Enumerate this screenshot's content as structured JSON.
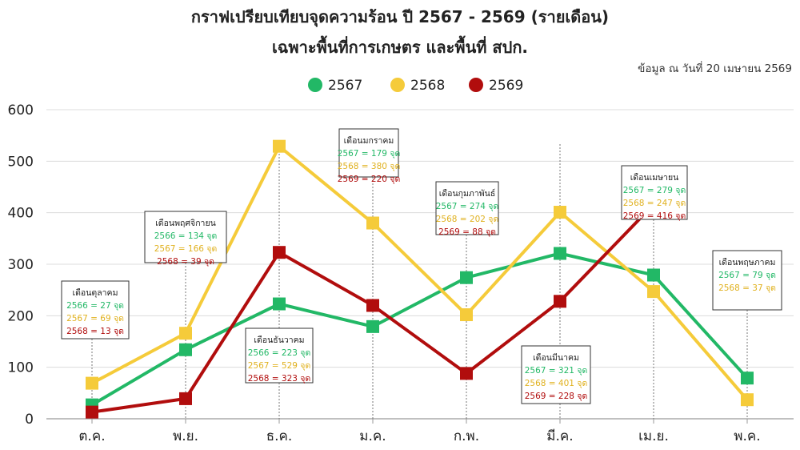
{
  "chart_data": {
    "type": "line",
    "title": "กราฟเปรียบเทียบจุดความร้อน ปี 2567 - 2569 (รายเดือน)",
    "subtitle": "เฉพาะพื้นที่การเกษตร และพื้นที่ สปก.",
    "source_note": "ข้อมูล ณ วันที่ 20 เมษายน 2569",
    "categories": [
      "ต.ค.",
      "พ.ย.",
      "ธ.ค.",
      "ม.ค.",
      "ก.พ.",
      "มี.ค.",
      "เม.ย.",
      "พ.ค."
    ],
    "ylim": [
      0,
      600
    ],
    "yticks": [
      0,
      100,
      200,
      300,
      400,
      500,
      600
    ],
    "grid": "horizontal",
    "legend_position": "top-center",
    "series": [
      {
        "name": "2567",
        "color": "#22b866",
        "values": [
          27,
          134,
          223,
          179,
          274,
          321,
          279,
          79
        ]
      },
      {
        "name": "2568",
        "color": "#f5cb3a",
        "values": [
          69,
          166,
          529,
          380,
          202,
          401,
          247,
          37
        ]
      },
      {
        "name": "2569",
        "color": "#b10d0d",
        "values": [
          13,
          39,
          323,
          220,
          88,
          228,
          416,
          null
        ]
      }
    ],
    "annotations": [
      {
        "index": 0,
        "title": "เดือนตุลาคม",
        "lines": [
          {
            "text": "2566 = 27 จุด",
            "color": "#22b866"
          },
          {
            "text": "2567 = 69 จุด",
            "color": "#e0b11f"
          },
          {
            "text": "2568 = 13 จุด",
            "color": "#b10d0d"
          }
        ]
      },
      {
        "index": 1,
        "title": "เดือนพฤศจิกายน",
        "lines": [
          {
            "text": "2566 = 134 จุด",
            "color": "#22b866"
          },
          {
            "text": "2567 = 166 จุด",
            "color": "#e0b11f"
          },
          {
            "text": "2568 = 39 จุด",
            "color": "#b10d0d"
          }
        ]
      },
      {
        "index": 2,
        "title": "เดือนธันวาคม",
        "lines": [
          {
            "text": "2566 = 223 จุด",
            "color": "#22b866"
          },
          {
            "text": "2567 = 529 จุด",
            "color": "#e0b11f"
          },
          {
            "text": "2568 = 323 จุด",
            "color": "#b10d0d"
          }
        ]
      },
      {
        "index": 3,
        "title": "เดือนมกราคม",
        "lines": [
          {
            "text": "2567 = 179 จุด",
            "color": "#22b866"
          },
          {
            "text": "2568 = 380 จุด",
            "color": "#e0b11f"
          },
          {
            "text": "2569 = 220 จุด",
            "color": "#b10d0d"
          }
        ]
      },
      {
        "index": 4,
        "title": "เดือนกุมภาพันธ์",
        "lines": [
          {
            "text": "2567 = 274 จุด",
            "color": "#22b866"
          },
          {
            "text": "2568 = 202 จุด",
            "color": "#e0b11f"
          },
          {
            "text": "2569 = 88 จุด",
            "color": "#b10d0d"
          }
        ]
      },
      {
        "index": 5,
        "title": "เดือนมีนาคม",
        "lines": [
          {
            "text": "2567 = 321 จุด",
            "color": "#22b866"
          },
          {
            "text": "2568 = 401 จุด",
            "color": "#e0b11f"
          },
          {
            "text": "2569 = 228 จุด",
            "color": "#b10d0d"
          }
        ]
      },
      {
        "index": 6,
        "title": "เดือนเมษายน",
        "lines": [
          {
            "text": "2567 = 279 จุด",
            "color": "#22b866"
          },
          {
            "text": "2568 = 247 จุด",
            "color": "#e0b11f"
          },
          {
            "text": "2569 = 416 จุด",
            "color": "#b10d0d"
          }
        ]
      },
      {
        "index": 7,
        "title": "เดือนพฤษภาคม",
        "lines": [
          {
            "text": "2567 = 79 จุด",
            "color": "#22b866"
          },
          {
            "text": "2568 = 37 จุด",
            "color": "#e0b11f"
          }
        ]
      }
    ]
  }
}
